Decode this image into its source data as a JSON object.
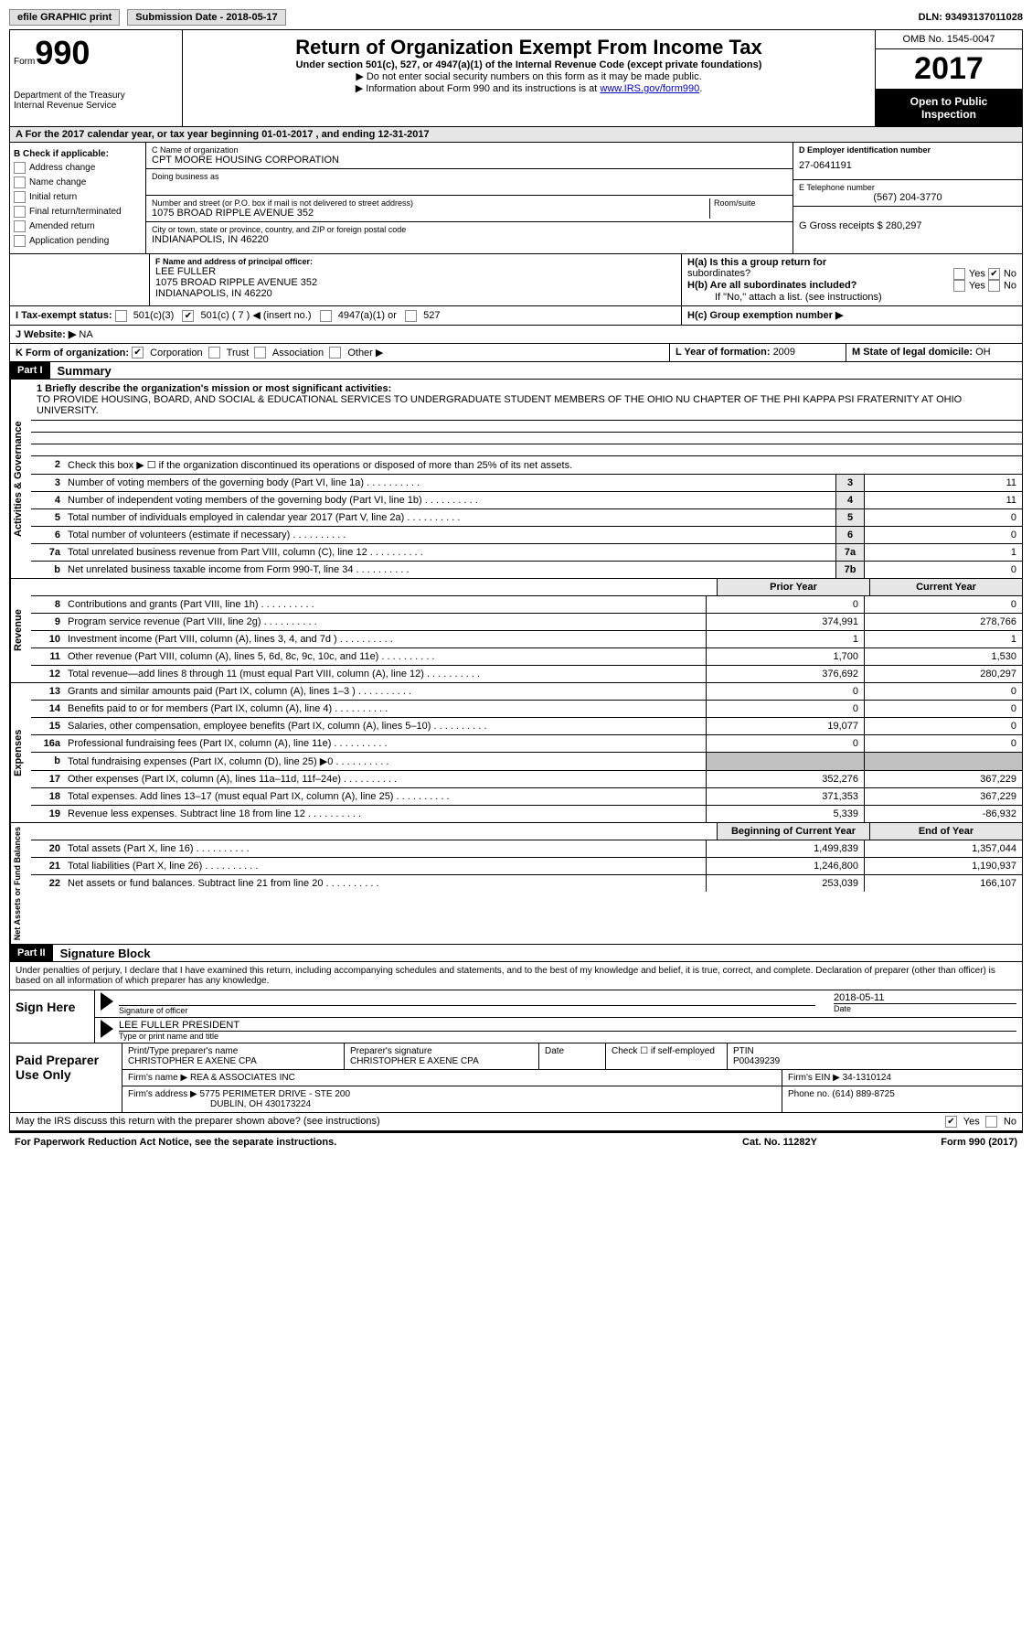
{
  "topbar": {
    "efile": "efile GRAPHIC print",
    "submission": "Submission Date - 2018-05-17",
    "dln": "DLN: 93493137011028"
  },
  "header": {
    "form_prefix": "Form",
    "form_number": "990",
    "dept1": "Department of the Treasury",
    "dept2": "Internal Revenue Service",
    "title": "Return of Organization Exempt From Income Tax",
    "subtitle": "Under section 501(c), 527, or 4947(a)(1) of the Internal Revenue Code (except private foundations)",
    "note1": "▶ Do not enter social security numbers on this form as it may be made public.",
    "note2_pre": "▶ Information about Form 990 and its instructions is at ",
    "note2_link": "www.IRS.gov/form990",
    "omb": "OMB No. 1545-0047",
    "year": "2017",
    "open1": "Open to Public",
    "open2": "Inspection"
  },
  "sectionA": "A  For the 2017 calendar year, or tax year beginning 01-01-2017    , and ending 12-31-2017",
  "checkB": {
    "label": "B Check if applicable:",
    "items": [
      "Address change",
      "Name change",
      "Initial return",
      "Final return/terminated",
      "Amended return",
      "Application pending"
    ]
  },
  "org": {
    "name_label": "C Name of organization",
    "name": "CPT MOORE HOUSING CORPORATION",
    "dba_label": "Doing business as",
    "addr_label": "Number and street (or P.O. box if mail is not delivered to street address)",
    "room_label": "Room/suite",
    "addr": "1075 BROAD RIPPLE AVENUE 352",
    "city_label": "City or town, state or province, country, and ZIP or foreign postal code",
    "city": "INDIANAPOLIS, IN  46220"
  },
  "right": {
    "ein_label": "D Employer identification number",
    "ein": "27-0641191",
    "phone_label": "E Telephone number",
    "phone": "(567) 204-3770",
    "gross_label": "G Gross receipts $ ",
    "gross": "280,297"
  },
  "officer": {
    "label": "F Name and address of principal officer:",
    "name": "LEE FULLER",
    "addr1": "1075 BROAD RIPPLE AVENUE 352",
    "addr2": "INDIANAPOLIS, IN  46220"
  },
  "ha": {
    "q": "H(a)  Is this a group return for",
    "q2": "subordinates?",
    "yes": "Yes",
    "no": "No"
  },
  "hb": {
    "q": "H(b)  Are all subordinates included?",
    "note": "If \"No,\" attach a list. (see instructions)"
  },
  "hc": "H(c)  Group exemption number ▶",
  "taxexempt": {
    "label": "I  Tax-exempt status:",
    "o1": "501(c)(3)",
    "o2": "501(c) ( 7 ) ◀ (insert no.)",
    "o3": "4947(a)(1) or",
    "o4": "527"
  },
  "website": {
    "label": "J  Website: ▶",
    "val": "NA"
  },
  "formorg": {
    "label": "K Form of organization:",
    "o1": "Corporation",
    "o2": "Trust",
    "o3": "Association",
    "o4": "Other ▶"
  },
  "yearform": {
    "label": "L Year of formation: ",
    "val": "2009"
  },
  "domicile": {
    "label": "M State of legal domicile:",
    "val": "OH"
  },
  "part1": {
    "header": "Part I",
    "title": "Summary"
  },
  "mission": {
    "q": "1  Briefly describe the organization's mission or most significant activities:",
    "text": "TO PROVIDE HOUSING, BOARD, AND SOCIAL & EDUCATIONAL SERVICES TO UNDERGRADUATE STUDENT MEMBERS OF THE OHIO NU CHAPTER OF THE PHI KAPPA PSI FRATERNITY AT OHIO UNIVERSITY."
  },
  "lines_gov": [
    {
      "n": "2",
      "d": "Check this box ▶ ☐ if the organization discontinued its operations or disposed of more than 25% of its net assets.",
      "box": "",
      "val": ""
    },
    {
      "n": "3",
      "d": "Number of voting members of the governing body (Part VI, line 1a)",
      "box": "3",
      "val": "11"
    },
    {
      "n": "4",
      "d": "Number of independent voting members of the governing body (Part VI, line 1b)",
      "box": "4",
      "val": "11"
    },
    {
      "n": "5",
      "d": "Total number of individuals employed in calendar year 2017 (Part V, line 2a)",
      "box": "5",
      "val": "0"
    },
    {
      "n": "6",
      "d": "Total number of volunteers (estimate if necessary)",
      "box": "6",
      "val": "0"
    },
    {
      "n": "7a",
      "d": "Total unrelated business revenue from Part VIII, column (C), line 12",
      "box": "7a",
      "val": "1"
    },
    {
      "n": "b",
      "d": "Net unrelated business taxable income from Form 990-T, line 34",
      "box": "7b",
      "val": "0"
    }
  ],
  "col_prior": "Prior Year",
  "col_current": "Current Year",
  "lines_rev": [
    {
      "n": "8",
      "d": "Contributions and grants (Part VIII, line 1h)",
      "p": "0",
      "c": "0"
    },
    {
      "n": "9",
      "d": "Program service revenue (Part VIII, line 2g)",
      "p": "374,991",
      "c": "278,766"
    },
    {
      "n": "10",
      "d": "Investment income (Part VIII, column (A), lines 3, 4, and 7d )",
      "p": "1",
      "c": "1"
    },
    {
      "n": "11",
      "d": "Other revenue (Part VIII, column (A), lines 5, 6d, 8c, 9c, 10c, and 11e)",
      "p": "1,700",
      "c": "1,530"
    },
    {
      "n": "12",
      "d": "Total revenue—add lines 8 through 11 (must equal Part VIII, column (A), line 12)",
      "p": "376,692",
      "c": "280,297"
    }
  ],
  "lines_exp": [
    {
      "n": "13",
      "d": "Grants and similar amounts paid (Part IX, column (A), lines 1–3 )",
      "p": "0",
      "c": "0"
    },
    {
      "n": "14",
      "d": "Benefits paid to or for members (Part IX, column (A), line 4)",
      "p": "0",
      "c": "0"
    },
    {
      "n": "15",
      "d": "Salaries, other compensation, employee benefits (Part IX, column (A), lines 5–10)",
      "p": "19,077",
      "c": "0"
    },
    {
      "n": "16a",
      "d": "Professional fundraising fees (Part IX, column (A), line 11e)",
      "p": "0",
      "c": "0"
    },
    {
      "n": "b",
      "d": "Total fundraising expenses (Part IX, column (D), line 25) ▶0",
      "p": "",
      "c": "",
      "gray": true
    },
    {
      "n": "17",
      "d": "Other expenses (Part IX, column (A), lines 11a–11d, 11f–24e)",
      "p": "352,276",
      "c": "367,229"
    },
    {
      "n": "18",
      "d": "Total expenses. Add lines 13–17 (must equal Part IX, column (A), line 25)",
      "p": "371,353",
      "c": "367,229"
    },
    {
      "n": "19",
      "d": "Revenue less expenses. Subtract line 18 from line 12",
      "p": "5,339",
      "c": "-86,932"
    }
  ],
  "col_begin": "Beginning of Current Year",
  "col_end": "End of Year",
  "lines_net": [
    {
      "n": "20",
      "d": "Total assets (Part X, line 16)",
      "p": "1,499,839",
      "c": "1,357,044"
    },
    {
      "n": "21",
      "d": "Total liabilities (Part X, line 26)",
      "p": "1,246,800",
      "c": "1,190,937"
    },
    {
      "n": "22",
      "d": "Net assets or fund balances. Subtract line 21 from line 20",
      "p": "253,039",
      "c": "166,107"
    }
  ],
  "part2": {
    "header": "Part II",
    "title": "Signature Block"
  },
  "sig_decl": "Under penalties of perjury, I declare that I have examined this return, including accompanying schedules and statements, and to the best of my knowledge and belief, it is true, correct, and complete. Declaration of preparer (other than officer) is based on all information of which preparer has any knowledge.",
  "sign": {
    "here": "Sign Here",
    "sig_label": "Signature of officer",
    "date_label": "Date",
    "date": "2018-05-11",
    "name": "LEE FULLER PRESIDENT",
    "name_label": "Type or print name and title"
  },
  "prep": {
    "here": "Paid Preparer Use Only",
    "name_label": "Print/Type preparer's name",
    "name": "CHRISTOPHER E AXENE CPA",
    "sig_label": "Preparer's signature",
    "sig": "CHRISTOPHER E AXENE CPA",
    "date_label": "Date",
    "check_label": "Check ☐ if self-employed",
    "ptin_label": "PTIN",
    "ptin": "P00439239",
    "firm_label": "Firm's name    ▶",
    "firm": "REA & ASSOCIATES INC",
    "ein_label": "Firm's EIN ▶",
    "ein": "34-1310124",
    "addr_label": "Firm's address ▶",
    "addr1": "5775 PERIMETER DRIVE - STE 200",
    "addr2": "DUBLIN, OH  430173224",
    "phone_label": "Phone no.",
    "phone": "(614) 889-8725"
  },
  "discuss": "May the IRS discuss this return with the preparer shown above? (see instructions)",
  "footer": {
    "pra": "For Paperwork Reduction Act Notice, see the separate instructions.",
    "cat": "Cat. No. 11282Y",
    "form": "Form 990 (2017)"
  },
  "vtabs": {
    "gov": "Activities & Governance",
    "rev": "Revenue",
    "exp": "Expenses",
    "net": "Net Assets or Fund Balances"
  }
}
